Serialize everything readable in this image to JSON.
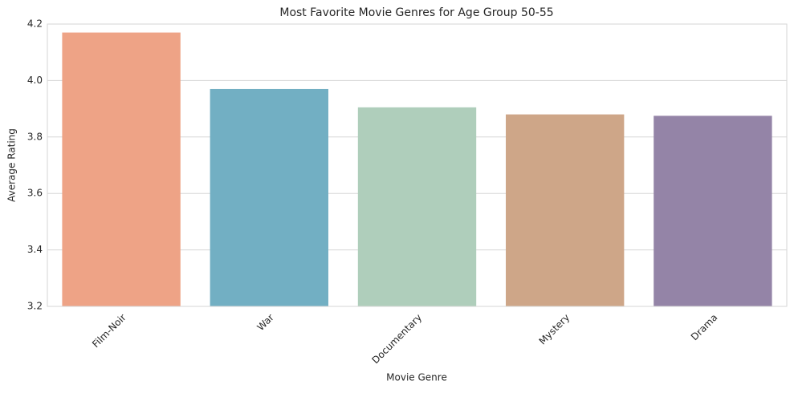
{
  "chart_data": {
    "type": "bar",
    "title": "Most Favorite Movie Genres for Age Group 50-55",
    "x_label": "Movie Genre",
    "y_label": "Average Rating",
    "categories": [
      "Film-Noir",
      "War",
      "Documentary",
      "Mystery",
      "Drama"
    ],
    "values": [
      4.17,
      3.97,
      3.905,
      3.88,
      3.875
    ],
    "colors": [
      "#eea386",
      "#72afc3",
      "#afcebb",
      "#cea688",
      "#9484a7"
    ],
    "ylim": [
      3.2,
      4.2
    ],
    "yticks": [
      3.2,
      3.4,
      3.6,
      3.8,
      {
        "value": 4,
        "label": "4.0"
      },
      4.2
    ],
    "grid": true
  }
}
